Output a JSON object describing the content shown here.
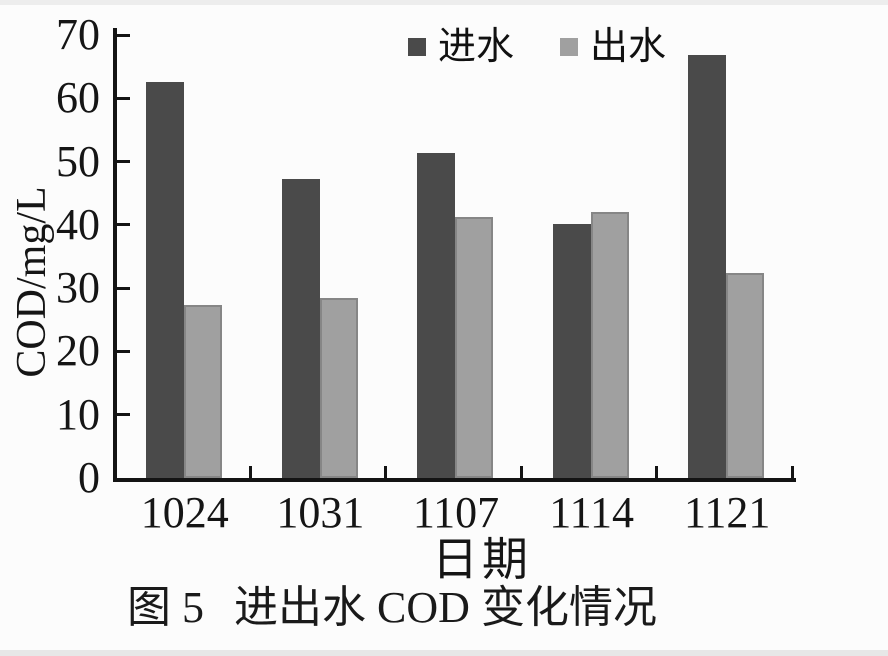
{
  "figure": {
    "caption_prefix": "图 5",
    "caption_title": "进出水 COD 变化情况"
  },
  "chart_data": {
    "type": "bar",
    "title": "图 5 进出水 COD 变化情况",
    "categories": [
      "1024",
      "1031",
      "1107",
      "1114",
      "1121"
    ],
    "series": [
      {
        "name": "进水",
        "color": "#4a4a4a",
        "values": [
          62.5,
          47.3,
          51.3,
          40.2,
          66.8
        ]
      },
      {
        "name": "出水",
        "color": "#a0a0a0",
        "values": [
          27.3,
          28.4,
          41.2,
          42.1,
          32.4
        ]
      }
    ],
    "xlabel": "日期",
    "ylabel": "COD/mg/L",
    "ylim": [
      0,
      70
    ],
    "yticks": [
      0,
      10,
      20,
      30,
      40,
      50,
      60,
      70
    ],
    "grid": false,
    "legend_position": "top-center",
    "axis_color": "#141414",
    "background_color": "#fcfcfc"
  }
}
